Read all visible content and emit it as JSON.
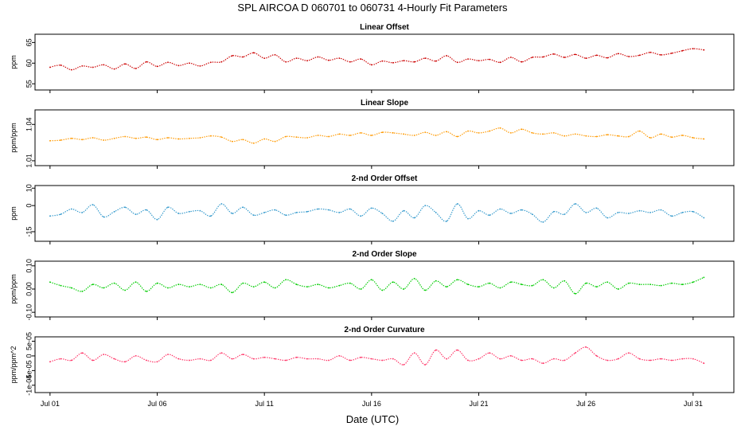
{
  "title": "SPL   AIRCOA D   060701 to 060731   4-Hourly Fit Parameters",
  "x_axis": {
    "label": "Date (UTC)",
    "ticks": [
      {
        "day": 1,
        "label": "Jul 01"
      },
      {
        "day": 6,
        "label": "Jul 06"
      },
      {
        "day": 11,
        "label": "Jul 11"
      },
      {
        "day": 16,
        "label": "Jul 16"
      },
      {
        "day": 21,
        "label": "Jul 21"
      },
      {
        "day": 26,
        "label": "Jul 26"
      },
      {
        "day": 31,
        "label": "Jul 31"
      }
    ]
  },
  "chart_data": [
    {
      "type": "line",
      "title": "Linear Offset",
      "ylabel": "ppm",
      "color": "#cc0000",
      "x_unit": "day of July 2006",
      "ylim": [
        53.5,
        67
      ],
      "yticks": [
        {
          "v": 55,
          "label": "55"
        },
        {
          "v": 60,
          "label": "60"
        },
        {
          "v": 65,
          "label": "65"
        }
      ],
      "x": [
        1.0,
        1.5,
        2.0,
        2.5,
        3.0,
        3.5,
        4.0,
        4.5,
        5.0,
        5.5,
        6.0,
        6.5,
        7.0,
        7.5,
        8.0,
        8.5,
        9.0,
        9.5,
        10.0,
        10.5,
        11.0,
        11.5,
        12.0,
        12.5,
        13.0,
        13.5,
        14.0,
        14.5,
        15.0,
        15.5,
        16.0,
        16.5,
        17.0,
        17.5,
        18.0,
        18.5,
        19.0,
        19.5,
        20.0,
        20.5,
        21.0,
        21.5,
        22.0,
        22.5,
        23.0,
        23.5,
        24.0,
        24.5,
        25.0,
        25.5,
        26.0,
        26.5,
        27.0,
        27.5,
        28.0,
        28.5,
        29.0,
        29.5,
        30.0,
        30.5,
        31.0,
        31.5
      ],
      "y": [
        59.0,
        59.5,
        58.4,
        59.3,
        59.0,
        59.6,
        58.6,
        59.8,
        58.7,
        60.3,
        59.2,
        60.2,
        59.4,
        60.0,
        59.3,
        60.2,
        60.3,
        61.8,
        61.5,
        62.5,
        61.2,
        62.0,
        60.3,
        61.2,
        60.6,
        61.5,
        60.7,
        61.2,
        60.3,
        61.0,
        59.6,
        60.5,
        60.1,
        60.6,
        60.3,
        61.2,
        60.5,
        61.8,
        60.2,
        61.0,
        60.6,
        60.9,
        60.2,
        61.4,
        60.3,
        61.4,
        61.5,
        62.2,
        61.4,
        62.1,
        61.2,
        61.9,
        61.3,
        62.3,
        61.6,
        61.9,
        62.6,
        62.0,
        62.4,
        63.0,
        63.5,
        63.2
      ]
    },
    {
      "type": "line",
      "title": "Linear Slope",
      "ylabel": "ppm/ppm",
      "color": "#ff9900",
      "x_unit": "day of July 2006",
      "ylim": [
        1.006,
        1.052
      ],
      "yticks": [
        {
          "v": 1.01,
          "label": "1.01"
        },
        {
          "v": 1.04,
          "label": "1.04"
        }
      ],
      "x": [
        1.0,
        1.5,
        2.0,
        2.5,
        3.0,
        3.5,
        4.0,
        4.5,
        5.0,
        5.5,
        6.0,
        6.5,
        7.0,
        7.5,
        8.0,
        8.5,
        9.0,
        9.5,
        10.0,
        10.5,
        11.0,
        11.5,
        12.0,
        12.5,
        13.0,
        13.5,
        14.0,
        14.5,
        15.0,
        15.5,
        16.0,
        16.5,
        17.0,
        17.5,
        18.0,
        18.5,
        19.0,
        19.5,
        20.0,
        20.5,
        21.0,
        21.5,
        22.0,
        22.5,
        23.0,
        23.5,
        24.0,
        24.5,
        25.0,
        25.5,
        26.0,
        26.5,
        27.0,
        27.5,
        28.0,
        28.5,
        29.0,
        29.5,
        30.0,
        30.5,
        31.0,
        31.5
      ],
      "y": [
        1.0265,
        1.027,
        1.0285,
        1.0275,
        1.029,
        1.027,
        1.0285,
        1.03,
        1.0285,
        1.0295,
        1.0275,
        1.029,
        1.028,
        1.0285,
        1.029,
        1.0305,
        1.0295,
        1.026,
        1.0275,
        1.0245,
        1.028,
        1.026,
        1.03,
        1.0295,
        1.029,
        1.031,
        1.03,
        1.032,
        1.031,
        1.033,
        1.031,
        1.0335,
        1.033,
        1.032,
        1.031,
        1.0335,
        1.031,
        1.034,
        1.03,
        1.0345,
        1.033,
        1.0345,
        1.037,
        1.033,
        1.036,
        1.033,
        1.032,
        1.033,
        1.0305,
        1.032,
        1.0305,
        1.03,
        1.0315,
        1.0305,
        1.03,
        1.0345,
        1.029,
        1.032,
        1.0295,
        1.031,
        1.029,
        1.028
      ]
    },
    {
      "type": "line",
      "title": "2-nd Order Offset",
      "ylabel": "ppm",
      "color": "#3399cc",
      "x_unit": "day of July 2006",
      "ylim": [
        -20.5,
        11.5
      ],
      "yticks": [
        {
          "v": 10,
          "label": "10"
        },
        {
          "v": 0,
          "label": "0"
        },
        {
          "v": -15,
          "label": "-15"
        }
      ],
      "x": [
        1.0,
        1.5,
        2.0,
        2.5,
        3.0,
        3.5,
        4.0,
        4.5,
        5.0,
        5.5,
        6.0,
        6.5,
        7.0,
        7.5,
        8.0,
        8.5,
        9.0,
        9.5,
        10.0,
        10.5,
        11.0,
        11.5,
        12.0,
        12.5,
        13.0,
        13.5,
        14.0,
        14.5,
        15.0,
        15.5,
        16.0,
        16.5,
        17.0,
        17.5,
        18.0,
        18.5,
        19.0,
        19.5,
        20.0,
        20.5,
        21.0,
        21.5,
        22.0,
        22.5,
        23.0,
        23.5,
        24.0,
        24.5,
        25.0,
        25.5,
        26.0,
        26.5,
        27.0,
        27.5,
        28.0,
        28.5,
        29.0,
        29.5,
        30.0,
        30.5,
        31.0,
        31.5
      ],
      "y": [
        -6.0,
        -5.0,
        -2.0,
        -4.0,
        0.5,
        -6.5,
        -3.5,
        -1.0,
        -5.0,
        -2.5,
        -8.0,
        -1.0,
        -4.5,
        -3.5,
        -3.0,
        -6.0,
        1.0,
        -4.5,
        -1.0,
        -5.5,
        -4.0,
        -2.5,
        -5.5,
        -4.0,
        -3.5,
        -2.0,
        -2.5,
        -4.0,
        -2.0,
        -6.0,
        -1.5,
        -4.5,
        -9.0,
        -3.0,
        -7.0,
        0.0,
        -4.0,
        -9.0,
        1.0,
        -7.5,
        -3.0,
        -5.5,
        -2.0,
        -4.5,
        -2.5,
        -5.0,
        -9.5,
        -3.5,
        -5.0,
        1.0,
        -4.0,
        -1.5,
        -7.0,
        -4.0,
        -4.5,
        -3.0,
        -4.0,
        -2.5,
        -6.0,
        -4.0,
        -3.5,
        -7.0
      ]
    },
    {
      "type": "line",
      "title": "2-nd Order Slope",
      "ylabel": "ppm/ppm",
      "color": "#00cc00",
      "x_unit": "day of July 2006",
      "ylim": [
        -0.12,
        0.12
      ],
      "yticks": [
        {
          "v": 0.1,
          "label": "0.10"
        },
        {
          "v": 0.0,
          "label": "0.00"
        },
        {
          "v": -0.1,
          "label": "-0.10"
        }
      ],
      "x": [
        1.0,
        1.5,
        2.0,
        2.5,
        3.0,
        3.5,
        4.0,
        4.5,
        5.0,
        5.5,
        6.0,
        6.5,
        7.0,
        7.5,
        8.0,
        8.5,
        9.0,
        9.5,
        10.0,
        10.5,
        11.0,
        11.5,
        12.0,
        12.5,
        13.0,
        13.5,
        14.0,
        14.5,
        15.0,
        15.5,
        16.0,
        16.5,
        17.0,
        17.5,
        18.0,
        18.5,
        19.0,
        19.5,
        20.0,
        20.5,
        21.0,
        21.5,
        22.0,
        22.5,
        23.0,
        23.5,
        24.0,
        24.5,
        25.0,
        25.5,
        26.0,
        26.5,
        27.0,
        27.5,
        28.0,
        28.5,
        29.0,
        29.5,
        30.0,
        30.5,
        31.0,
        31.5
      ],
      "y": [
        0.03,
        0.015,
        0.005,
        -0.01,
        0.02,
        0.005,
        0.025,
        -0.005,
        0.03,
        -0.01,
        0.025,
        0.005,
        0.02,
        0.01,
        0.02,
        0.005,
        0.02,
        -0.015,
        0.025,
        0.01,
        0.03,
        0.005,
        0.04,
        0.02,
        0.01,
        0.02,
        0.005,
        0.015,
        0.025,
        0.0,
        0.04,
        -0.005,
        0.03,
        0.0,
        0.045,
        -0.005,
        0.035,
        0.01,
        0.04,
        0.02,
        0.01,
        0.025,
        0.005,
        0.03,
        0.02,
        0.015,
        0.04,
        0.005,
        0.035,
        -0.02,
        0.025,
        0.01,
        0.03,
        0.0,
        0.025,
        0.02,
        0.02,
        0.015,
        0.025,
        0.02,
        0.03,
        0.05
      ]
    },
    {
      "type": "line",
      "title": "2-nd Order Curvature",
      "ylabel": "ppm/ppm^2",
      "color": "#ff3366",
      "x_unit": "day of July 2006",
      "ylim": [
        -0.000125,
        6.5e-05
      ],
      "yticks": [
        {
          "v": 5e-05,
          "label": "5e-05"
        },
        {
          "v": 0.0,
          "label": "0"
        },
        {
          "v": -5e-05,
          "label": "-5e-05"
        },
        {
          "v": -0.0001,
          "label": "-1e-04"
        }
      ],
      "x": [
        1.0,
        1.5,
        2.0,
        2.5,
        3.0,
        3.5,
        4.0,
        4.5,
        5.0,
        5.5,
        6.0,
        6.5,
        7.0,
        7.5,
        8.0,
        8.5,
        9.0,
        9.5,
        10.0,
        10.5,
        11.0,
        11.5,
        12.0,
        12.5,
        13.0,
        13.5,
        14.0,
        14.5,
        15.0,
        15.5,
        16.0,
        16.5,
        17.0,
        17.5,
        18.0,
        18.5,
        19.0,
        19.5,
        20.0,
        20.5,
        21.0,
        21.5,
        22.0,
        22.5,
        23.0,
        23.5,
        24.0,
        24.5,
        25.0,
        25.5,
        26.0,
        26.5,
        27.0,
        27.5,
        28.0,
        28.5,
        29.0,
        29.5,
        30.0,
        30.5,
        31.0,
        31.5
      ],
      "y": [
        -2e-05,
        -1e-05,
        -1.5e-05,
        1e-05,
        -1.5e-05,
        5e-06,
        -1e-05,
        -2e-05,
        0.0,
        -1.5e-05,
        -2e-05,
        5e-06,
        -1e-05,
        -1.5e-05,
        -1e-05,
        -1.5e-05,
        1e-05,
        -1e-05,
        5e-06,
        -1e-05,
        -5e-06,
        -1e-05,
        -1.5e-05,
        -5e-06,
        -1e-05,
        -1e-05,
        -1.5e-05,
        0.0,
        -1.5e-05,
        -5e-06,
        -1e-05,
        -1.5e-05,
        -1e-05,
        -3e-05,
        1e-05,
        -3e-05,
        2e-05,
        -1e-05,
        2e-05,
        -1.5e-05,
        -1e-05,
        1e-05,
        -1e-05,
        0.0,
        -1.5e-05,
        -1e-05,
        -2.5e-05,
        -1e-05,
        -1.5e-05,
        1e-05,
        3e-05,
        0.0,
        -1.5e-05,
        -1e-05,
        1e-05,
        -1e-05,
        -1.5e-05,
        -1e-05,
        -1.5e-05,
        -1e-05,
        -1e-05,
        -2.5e-05
      ]
    }
  ]
}
